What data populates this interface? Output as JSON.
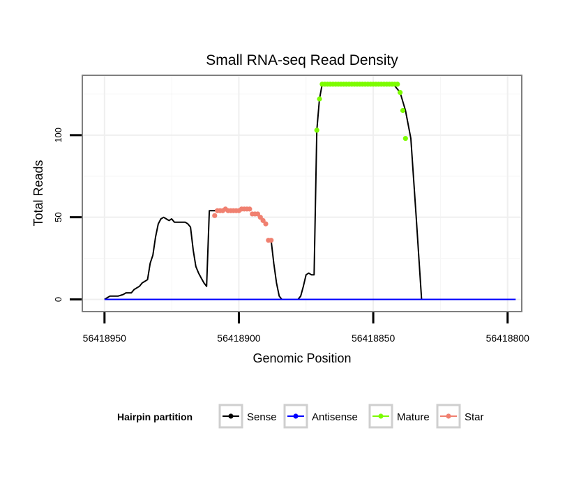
{
  "chart_data": {
    "type": "line",
    "title": "Small RNA-seq Read Density",
    "xlabel": "Genomic Position",
    "ylabel": "Total Reads",
    "x_reversed": true,
    "xlim": [
      56418958,
      56418795
    ],
    "ylim": [
      -7,
      136
    ],
    "x_ticks": [
      56418950,
      56418900,
      56418850,
      56418800
    ],
    "x_tick_labels": [
      "56418950",
      "56418900",
      "56418850",
      "56418800"
    ],
    "y_ticks": [
      0,
      50,
      100
    ],
    "y_tick_labels": [
      "0",
      "50",
      "100"
    ],
    "grid": true,
    "legend": {
      "title": "Hairpin partition",
      "position": "bottom",
      "entries": [
        "Sense",
        "Antisense",
        "Mature",
        "Star"
      ]
    },
    "series": [
      {
        "name": "Sense",
        "color": "#000000",
        "markers": false,
        "x": [
          56418950,
          56418949,
          56418948,
          56418946,
          56418945,
          56418943,
          56418942,
          56418940,
          56418939,
          56418937,
          56418936,
          56418935,
          56418934,
          56418933,
          56418932,
          56418931,
          56418930,
          56418929,
          56418928,
          56418927,
          56418926,
          56418925,
          56418924,
          56418923,
          56418922,
          56418921,
          56418920,
          56418919,
          56418918,
          56418917,
          56418916,
          56418915,
          56418914,
          56418913,
          56418912,
          56418911,
          56418910,
          56418909,
          56418908
        ],
        "y": [
          0,
          1,
          2,
          2,
          2,
          3,
          4,
          4,
          6,
          8,
          10,
          11,
          12,
          22,
          27,
          38,
          46,
          49,
          50,
          49,
          48,
          49,
          47,
          47,
          47,
          47,
          47,
          46,
          44,
          30,
          20,
          16,
          13,
          10,
          8,
          54,
          54,
          54,
          55
        ]
      },
      {
        "name": "Sense",
        "color": "#000000",
        "markers": false,
        "x": [
          56418888,
          56418887,
          56418886,
          56418885,
          56418884,
          56418883,
          56418882,
          56418881,
          56418880,
          56418879,
          56418878,
          56418877,
          56418876,
          56418875,
          56418874,
          56418873,
          56418872,
          56418871,
          56418870,
          56418869,
          56418868,
          56418867,
          56418866,
          56418865,
          56418864,
          56418863,
          56418862,
          56418861,
          56418860,
          56418858,
          56418856,
          56418854,
          56418852,
          56418850,
          56418848,
          56418846,
          56418844,
          56418842,
          56418840,
          56418838,
          56418836,
          56418834,
          56418832,
          56418830,
          56418828,
          56418826,
          56418824,
          56418822,
          56418820,
          56418818,
          56418816,
          56418814,
          56418812,
          56418810,
          56418808,
          56418806,
          56418804,
          56418802,
          56418800,
          56418798
        ],
        "y": [
          36,
          22,
          10,
          2,
          0,
          0,
          0,
          0,
          0,
          0,
          0,
          2,
          8,
          15,
          16,
          15,
          15,
          103,
          122,
          131,
          131,
          131,
          131,
          131,
          131,
          131,
          131,
          131,
          131,
          131,
          131,
          131,
          131,
          131,
          131,
          131,
          131,
          130,
          126,
          115,
          98,
          50,
          0,
          0,
          0,
          0,
          0,
          0,
          0,
          0,
          0,
          0,
          0,
          0,
          0,
          0,
          0,
          0,
          0,
          0
        ]
      },
      {
        "name": "Antisense",
        "color": "#0000ff",
        "markers": false,
        "x": [
          56418950,
          56418798
        ],
        "y": [
          0,
          0
        ]
      },
      {
        "name": "Antisense",
        "color": "#0000ff",
        "markers": false,
        "x": [
          56418815,
          56418797
        ],
        "y": [
          0,
          0
        ]
      },
      {
        "name": "Mature",
        "color": "#7cfc00",
        "markers": true,
        "x": [
          56418871,
          56418870,
          56418869,
          56418868,
          56418867,
          56418866,
          56418865,
          56418864,
          56418863,
          56418862,
          56418861,
          56418860,
          56418859,
          56418858,
          56418857,
          56418856,
          56418855,
          56418854,
          56418853,
          56418852,
          56418851,
          56418850,
          56418849,
          56418848,
          56418847,
          56418846,
          56418845,
          56418844,
          56418843,
          56418842,
          56418841,
          56418840,
          56418839,
          56418838
        ],
        "y": [
          103,
          122,
          131,
          131,
          131,
          131,
          131,
          131,
          131,
          131,
          131,
          131,
          131,
          131,
          131,
          131,
          131,
          131,
          131,
          131,
          131,
          131,
          131,
          131,
          131,
          131,
          131,
          131,
          131,
          131,
          131,
          126,
          115,
          98
        ]
      },
      {
        "name": "Star",
        "color": "#f08070",
        "markers": true,
        "x": [
          56418909,
          56418908,
          56418907,
          56418906,
          56418905,
          56418904,
          56418903,
          56418902,
          56418901,
          56418900,
          56418899,
          56418898,
          56418897,
          56418896,
          56418895,
          56418894,
          56418893,
          56418892,
          56418891,
          56418890,
          56418889,
          56418888
        ],
        "y": [
          51,
          54,
          54,
          54,
          55,
          54,
          54,
          54,
          54,
          54,
          55,
          55,
          55,
          55,
          52,
          52,
          52,
          50,
          48,
          46,
          36,
          36
        ]
      }
    ]
  }
}
